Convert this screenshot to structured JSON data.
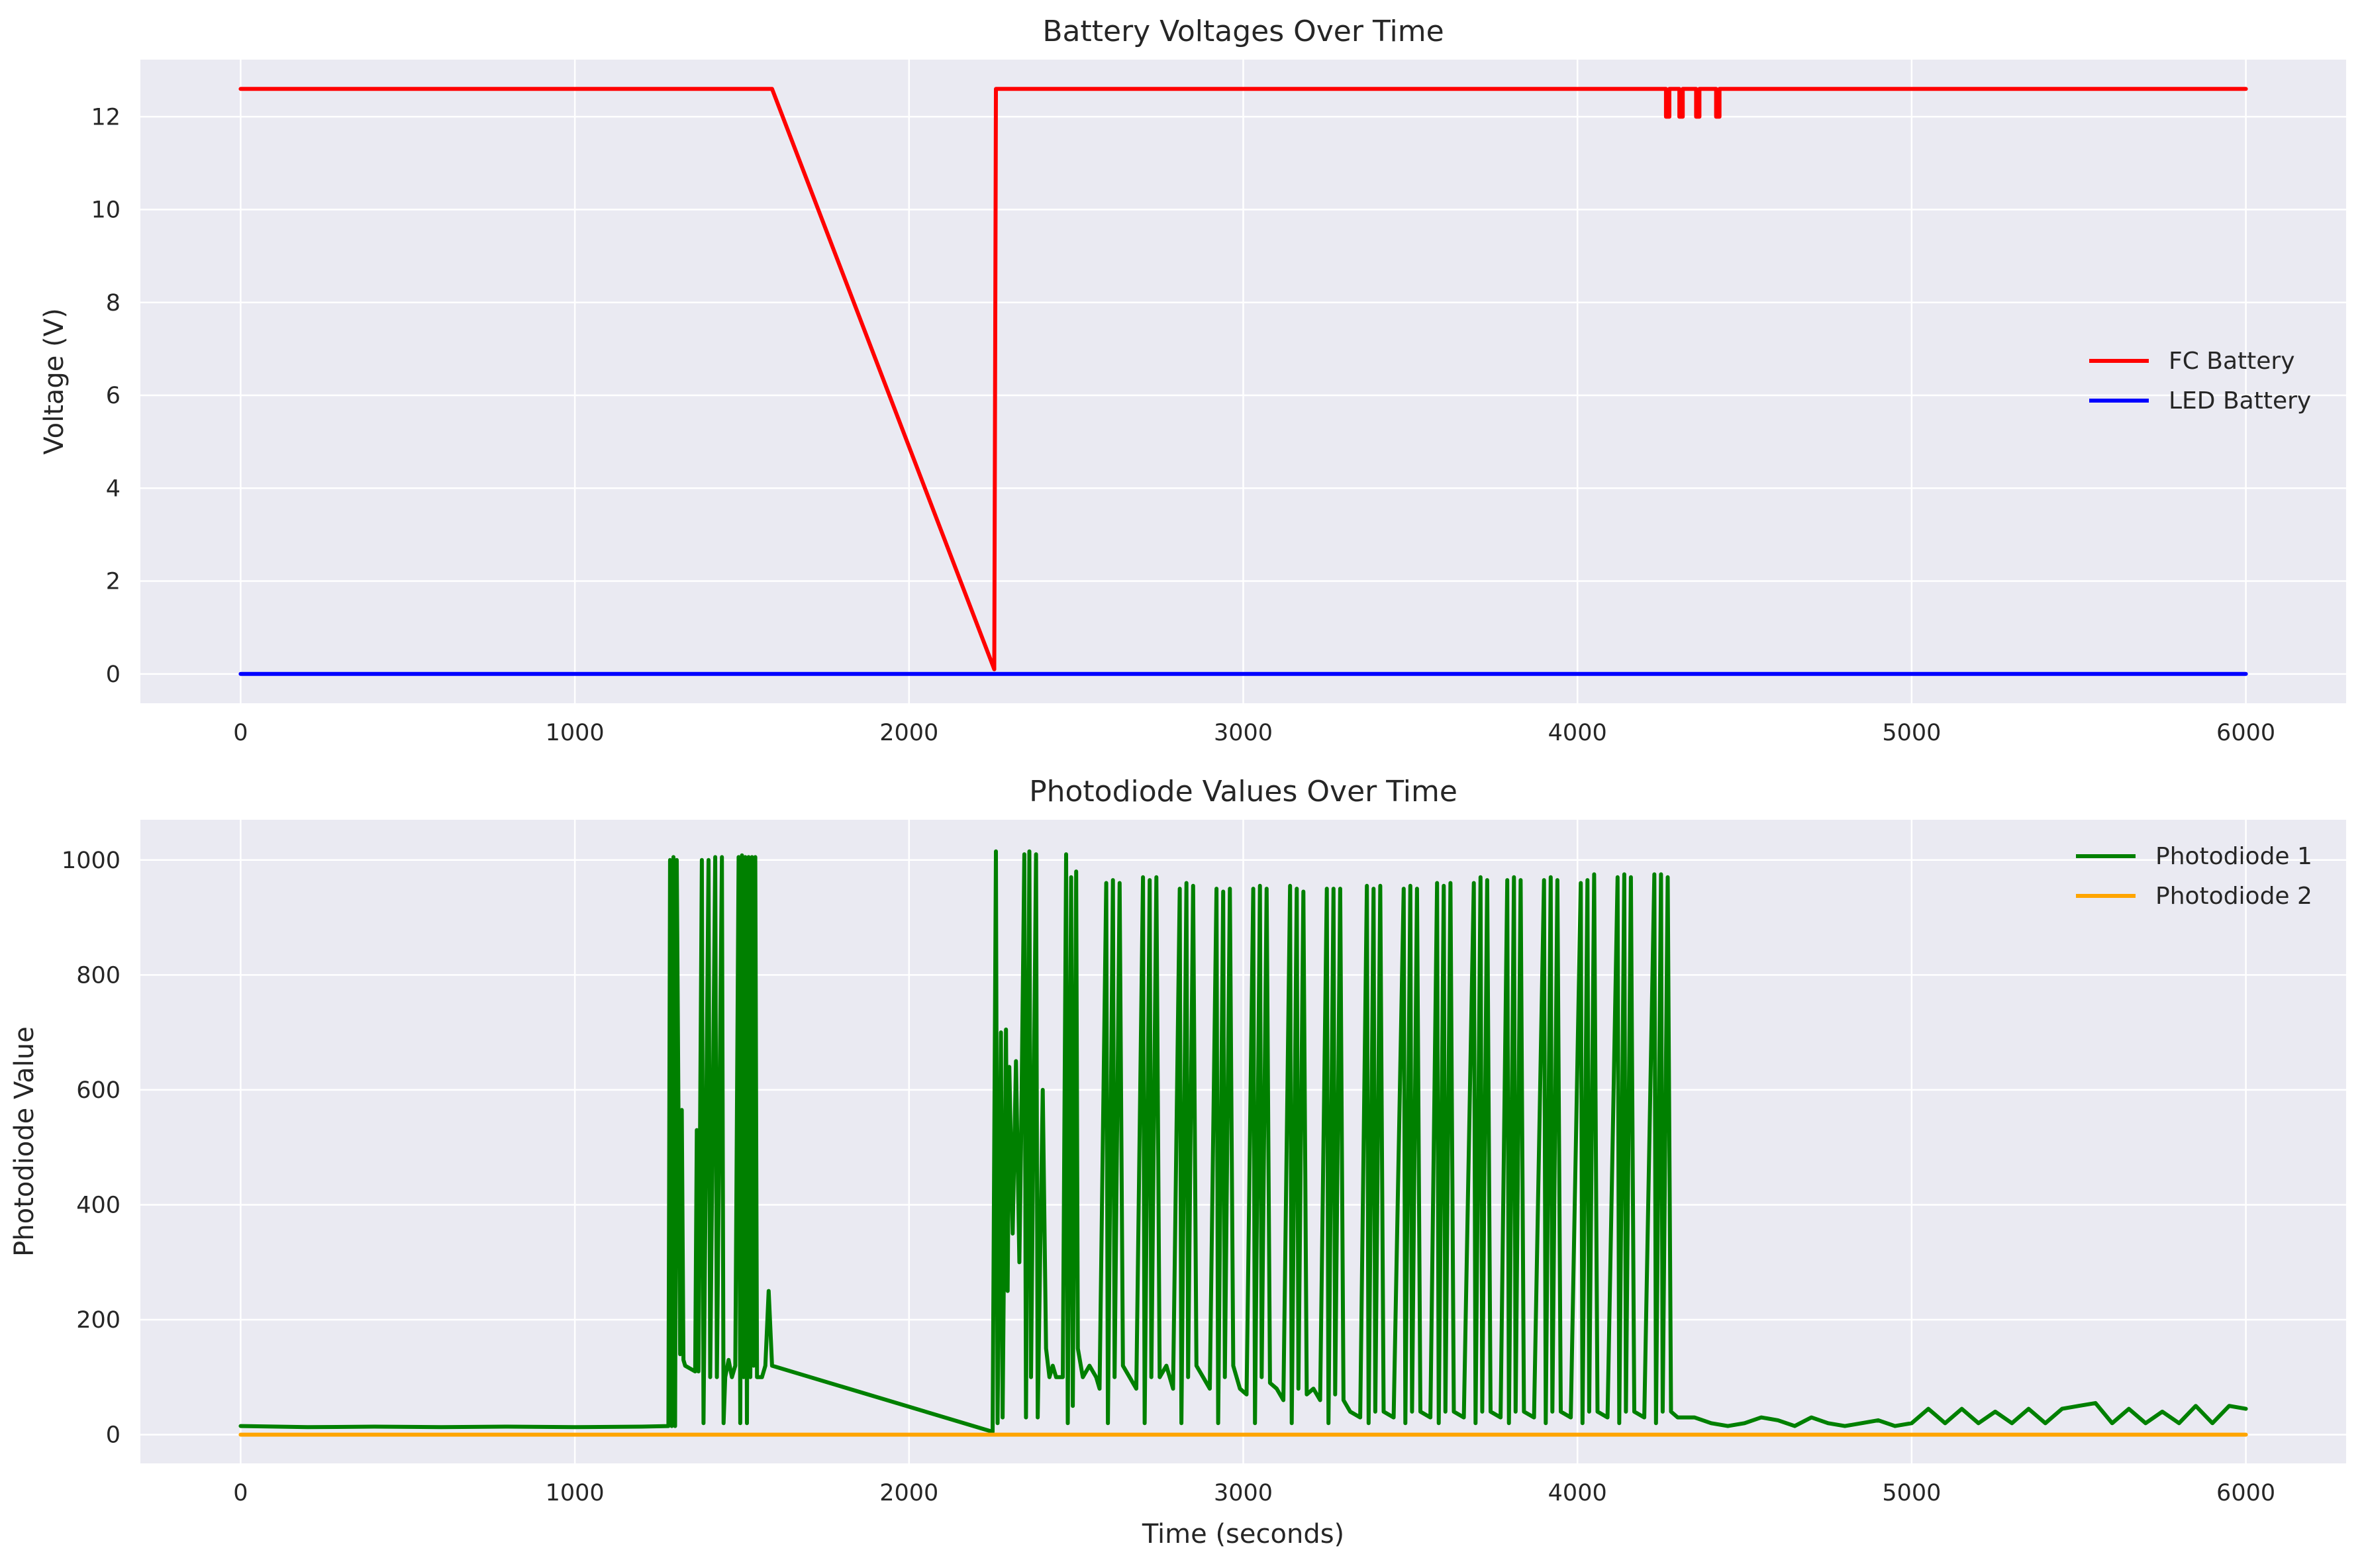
{
  "chart_data": [
    {
      "type": "line",
      "title": "Battery Voltages Over Time",
      "xlabel": "",
      "ylabel": "Voltage (V)",
      "xlim": [
        -300,
        6300
      ],
      "ylim": [
        -0.63,
        13.23
      ],
      "xticks": [
        0,
        1000,
        2000,
        3000,
        4000,
        5000,
        6000
      ],
      "yticks": [
        0,
        2,
        4,
        6,
        8,
        10,
        12
      ],
      "xtick_labels": [
        "0",
        "1000",
        "2000",
        "3000",
        "4000",
        "5000",
        "6000"
      ],
      "ytick_labels": [
        "0",
        "2",
        "4",
        "6",
        "8",
        "10",
        "12"
      ],
      "grid": true,
      "legend_position": "center-right",
      "series": [
        {
          "name": "FC Battery",
          "color": "#ff0000",
          "points": [
            [
              0,
              12.6
            ],
            [
              1590,
              12.6
            ],
            [
              2255,
              0.1
            ],
            [
              2260,
              12.6
            ],
            [
              4265,
              12.6
            ],
            [
              4265,
              12.0
            ],
            [
              4275,
              12.0
            ],
            [
              4275,
              12.6
            ],
            [
              4305,
              12.6
            ],
            [
              4305,
              12.0
            ],
            [
              4315,
              12.0
            ],
            [
              4315,
              12.6
            ],
            [
              4355,
              12.6
            ],
            [
              4355,
              12.0
            ],
            [
              4365,
              12.0
            ],
            [
              4365,
              12.6
            ],
            [
              4415,
              12.6
            ],
            [
              4415,
              12.0
            ],
            [
              4425,
              12.0
            ],
            [
              4425,
              12.6
            ],
            [
              6000,
              12.6
            ]
          ]
        },
        {
          "name": "LED Battery",
          "color": "#0000ff",
          "points": [
            [
              0,
              0
            ],
            [
              6000,
              0
            ]
          ]
        }
      ]
    },
    {
      "type": "line",
      "title": "Photodiode Values Over Time",
      "xlabel": "Time (seconds)",
      "ylabel": "Photodiode Value",
      "xlim": [
        -300,
        6300
      ],
      "ylim": [
        -50,
        1070
      ],
      "xticks": [
        0,
        1000,
        2000,
        3000,
        4000,
        5000,
        6000
      ],
      "yticks": [
        0,
        200,
        400,
        600,
        800,
        1000
      ],
      "xtick_labels": [
        "0",
        "1000",
        "2000",
        "3000",
        "4000",
        "5000",
        "6000"
      ],
      "ytick_labels": [
        "0",
        "200",
        "400",
        "600",
        "800",
        "1000"
      ],
      "grid": true,
      "legend_position": "top-right",
      "series": [
        {
          "name": "Photodiode 1",
          "color": "#008000",
          "points": [
            [
              0,
              15
            ],
            [
              200,
              13
            ],
            [
              400,
              14
            ],
            [
              600,
              13
            ],
            [
              800,
              14
            ],
            [
              1000,
              13
            ],
            [
              1200,
              14
            ],
            [
              1280,
              15
            ],
            [
              1285,
              1000
            ],
            [
              1290,
              15
            ],
            [
              1295,
              1005
            ],
            [
              1300,
              15
            ],
            [
              1305,
              1000
            ],
            [
              1315,
              140
            ],
            [
              1320,
              565
            ],
            [
              1325,
              130
            ],
            [
              1330,
              120
            ],
            [
              1345,
              115
            ],
            [
              1360,
              110
            ],
            [
              1365,
              530
            ],
            [
              1370,
              110
            ],
            [
              1380,
              1000
            ],
            [
              1385,
              20
            ],
            [
              1400,
              1000
            ],
            [
              1405,
              100
            ],
            [
              1420,
              1005
            ],
            [
              1425,
              100
            ],
            [
              1440,
              1005
            ],
            [
              1445,
              20
            ],
            [
              1450,
              100
            ],
            [
              1460,
              130
            ],
            [
              1470,
              100
            ],
            [
              1480,
              120
            ],
            [
              1490,
              1005
            ],
            [
              1495,
              20
            ],
            [
              1500,
              1008
            ],
            [
              1505,
              100
            ],
            [
              1510,
              1005
            ],
            [
              1515,
              20
            ],
            [
              1520,
              1005
            ],
            [
              1525,
              100
            ],
            [
              1530,
              1005
            ],
            [
              1535,
              120
            ],
            [
              1540,
              1005
            ],
            [
              1545,
              100
            ],
            [
              1555,
              100
            ],
            [
              1560,
              100
            ],
            [
              1570,
              120
            ],
            [
              1580,
              250
            ],
            [
              1590,
              120
            ],
            [
              2250,
              5
            ],
            [
              2260,
              1015
            ],
            [
              2265,
              20
            ],
            [
              2275,
              700
            ],
            [
              2280,
              30
            ],
            [
              2290,
              705
            ],
            [
              2295,
              250
            ],
            [
              2300,
              640
            ],
            [
              2310,
              350
            ],
            [
              2320,
              650
            ],
            [
              2330,
              300
            ],
            [
              2335,
              500
            ],
            [
              2345,
              1010
            ],
            [
              2350,
              30
            ],
            [
              2360,
              1015
            ],
            [
              2365,
              100
            ],
            [
              2380,
              1010
            ],
            [
              2385,
              30
            ],
            [
              2400,
              600
            ],
            [
              2410,
              150
            ],
            [
              2420,
              100
            ],
            [
              2430,
              120
            ],
            [
              2440,
              100
            ],
            [
              2460,
              100
            ],
            [
              2470,
              1010
            ],
            [
              2475,
              20
            ],
            [
              2485,
              970
            ],
            [
              2490,
              50
            ],
            [
              2500,
              980
            ],
            [
              2505,
              150
            ],
            [
              2520,
              100
            ],
            [
              2540,
              120
            ],
            [
              2560,
              100
            ],
            [
              2570,
              80
            ],
            [
              2590,
              960
            ],
            [
              2595,
              20
            ],
            [
              2610,
              965
            ],
            [
              2615,
              100
            ],
            [
              2630,
              960
            ],
            [
              2640,
              120
            ],
            [
              2660,
              100
            ],
            [
              2680,
              80
            ],
            [
              2700,
              970
            ],
            [
              2705,
              20
            ],
            [
              2720,
              965
            ],
            [
              2725,
              100
            ],
            [
              2740,
              970
            ],
            [
              2750,
              100
            ],
            [
              2770,
              120
            ],
            [
              2790,
              80
            ],
            [
              2810,
              950
            ],
            [
              2815,
              20
            ],
            [
              2830,
              960
            ],
            [
              2835,
              100
            ],
            [
              2850,
              955
            ],
            [
              2860,
              120
            ],
            [
              2880,
              100
            ],
            [
              2900,
              80
            ],
            [
              2920,
              950
            ],
            [
              2925,
              20
            ],
            [
              2940,
              945
            ],
            [
              2945,
              100
            ],
            [
              2960,
              950
            ],
            [
              2970,
              120
            ],
            [
              2990,
              80
            ],
            [
              3010,
              70
            ],
            [
              3030,
              950
            ],
            [
              3035,
              20
            ],
            [
              3050,
              955
            ],
            [
              3055,
              100
            ],
            [
              3070,
              950
            ],
            [
              3080,
              90
            ],
            [
              3100,
              80
            ],
            [
              3120,
              60
            ],
            [
              3140,
              955
            ],
            [
              3145,
              20
            ],
            [
              3160,
              950
            ],
            [
              3165,
              80
            ],
            [
              3180,
              945
            ],
            [
              3190,
              70
            ],
            [
              3210,
              80
            ],
            [
              3230,
              60
            ],
            [
              3250,
              950
            ],
            [
              3255,
              20
            ],
            [
              3270,
              950
            ],
            [
              3275,
              70
            ],
            [
              3290,
              950
            ],
            [
              3300,
              60
            ],
            [
              3320,
              40
            ],
            [
              3350,
              30
            ],
            [
              3370,
              955
            ],
            [
              3375,
              20
            ],
            [
              3390,
              950
            ],
            [
              3395,
              40
            ],
            [
              3410,
              955
            ],
            [
              3420,
              40
            ],
            [
              3450,
              30
            ],
            [
              3480,
              950
            ],
            [
              3485,
              20
            ],
            [
              3500,
              955
            ],
            [
              3505,
              40
            ],
            [
              3520,
              950
            ],
            [
              3530,
              40
            ],
            [
              3560,
              30
            ],
            [
              3580,
              960
            ],
            [
              3585,
              20
            ],
            [
              3600,
              955
            ],
            [
              3605,
              40
            ],
            [
              3620,
              960
            ],
            [
              3630,
              40
            ],
            [
              3660,
              30
            ],
            [
              3690,
              960
            ],
            [
              3695,
              20
            ],
            [
              3710,
              970
            ],
            [
              3715,
              40
            ],
            [
              3730,
              965
            ],
            [
              3740,
              40
            ],
            [
              3770,
              30
            ],
            [
              3790,
              965
            ],
            [
              3795,
              20
            ],
            [
              3810,
              970
            ],
            [
              3815,
              40
            ],
            [
              3830,
              965
            ],
            [
              3840,
              40
            ],
            [
              3870,
              30
            ],
            [
              3900,
              965
            ],
            [
              3905,
              20
            ],
            [
              3920,
              970
            ],
            [
              3925,
              40
            ],
            [
              3940,
              965
            ],
            [
              3950,
              40
            ],
            [
              3980,
              30
            ],
            [
              4010,
              960
            ],
            [
              4015,
              20
            ],
            [
              4030,
              965
            ],
            [
              4035,
              40
            ],
            [
              4050,
              975
            ],
            [
              4060,
              40
            ],
            [
              4090,
              30
            ],
            [
              4120,
              970
            ],
            [
              4125,
              20
            ],
            [
              4140,
              975
            ],
            [
              4145,
              40
            ],
            [
              4160,
              970
            ],
            [
              4170,
              40
            ],
            [
              4200,
              30
            ],
            [
              4230,
              975
            ],
            [
              4235,
              20
            ],
            [
              4250,
              975
            ],
            [
              4255,
              40
            ],
            [
              4270,
              970
            ],
            [
              4280,
              40
            ],
            [
              4300,
              30
            ],
            [
              4350,
              30
            ],
            [
              4400,
              20
            ],
            [
              4450,
              15
            ],
            [
              4500,
              20
            ],
            [
              4550,
              30
            ],
            [
              4600,
              25
            ],
            [
              4650,
              15
            ],
            [
              4700,
              30
            ],
            [
              4750,
              20
            ],
            [
              4800,
              15
            ],
            [
              4850,
              20
            ],
            [
              4900,
              25
            ],
            [
              4950,
              15
            ],
            [
              5000,
              20
            ],
            [
              5050,
              45
            ],
            [
              5100,
              20
            ],
            [
              5150,
              45
            ],
            [
              5200,
              20
            ],
            [
              5250,
              40
            ],
            [
              5300,
              20
            ],
            [
              5350,
              45
            ],
            [
              5400,
              20
            ],
            [
              5450,
              45
            ],
            [
              5500,
              50
            ],
            [
              5550,
              55
            ],
            [
              5600,
              20
            ],
            [
              5650,
              45
            ],
            [
              5700,
              20
            ],
            [
              5750,
              40
            ],
            [
              5800,
              20
            ],
            [
              5850,
              50
            ],
            [
              5900,
              20
            ],
            [
              5950,
              50
            ],
            [
              6000,
              45
            ]
          ]
        },
        {
          "name": "Photodiode 2",
          "color": "#ffa500",
          "points": [
            [
              0,
              0
            ],
            [
              6000,
              0
            ]
          ]
        }
      ]
    }
  ]
}
